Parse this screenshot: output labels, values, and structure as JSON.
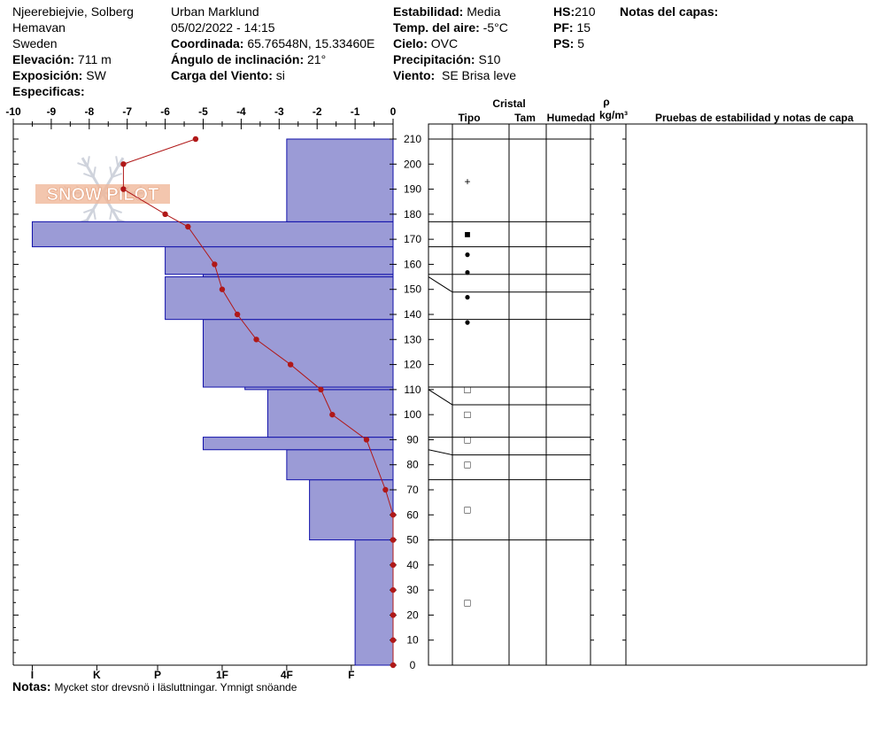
{
  "header": {
    "location": "Njeerebiejvie, Solberg",
    "region": "Hemavan",
    "country": "Sweden",
    "elevation_label": "Elevación:",
    "elevation_value": "711 m",
    "exposure_label": "Exposición:",
    "exposure_value": "SW",
    "specifics_label": "Especificas:",
    "observer": "Urban Marklund",
    "datetime": "05/02/2022 - 14:15",
    "coord_label": "Coordinada:",
    "coord_value": "65.76548N, 15.33460E",
    "slope_label": "Ángulo de inclinación:",
    "slope_value": "21°",
    "wind_load_label": "Carga del Viento:",
    "wind_load_value": "si",
    "stability_label": "Estabilidad:",
    "stability_value": "Media",
    "air_temp_label": "Temp. del aire:",
    "air_temp_value": "-5°C",
    "sky_label": "Cielo:",
    "sky_value": "OVC",
    "precip_label": "Precipitación:",
    "precip_value": "S10",
    "wind_label": "Viento:",
    "wind_value": "SE Brisa leve",
    "hs_label": "HS:",
    "hs_value": "210",
    "pf_label": "PF:",
    "pf_value": "15",
    "ps_label": "PS:",
    "ps_value": "5",
    "layer_notes_label": "Notas del capas:"
  },
  "notes": {
    "label": "Notas:",
    "text": "Mycket stor drevsnö i läsluttningar. Ymnigt snöande"
  },
  "watermark": {
    "text": "SNOW PILOT"
  },
  "table_headers": {
    "crystal": "Cristal",
    "type": "Tipo",
    "size": "Tam",
    "humidity": "Humedad",
    "rho": "ρ",
    "density_unit": "kg/m³",
    "tests": "Pruebas de estabilidad y notas de capa"
  },
  "colors": {
    "hardness_fill": "#9b9bd6",
    "hardness_stroke": "#1010aa",
    "temp_line": "#b01818"
  },
  "chart_data": {
    "type": "snow_profile",
    "temp_axis": {
      "min": -10,
      "max": 0,
      "ticks": [
        "-10",
        "-9",
        "-8",
        "-7",
        "-6",
        "-5",
        "-4",
        "-3",
        "-2",
        "-1",
        "0"
      ]
    },
    "height_axis": {
      "min": 0,
      "max": 210,
      "ticks": [
        "0",
        "10",
        "20",
        "30",
        "40",
        "50",
        "60",
        "70",
        "80",
        "90",
        "100",
        "110",
        "120",
        "130",
        "140",
        "150",
        "160",
        "170",
        "180",
        "190",
        "200",
        "210"
      ]
    },
    "hardness_axis": {
      "labels": [
        "I",
        "K",
        "P",
        "1F",
        "4F",
        "F"
      ],
      "positions": [
        9.5,
        7.8,
        6.2,
        4.5,
        2.8,
        1.1
      ]
    },
    "hardness_layers": [
      {
        "bottom": 0,
        "top": 50,
        "hardness": 1.0
      },
      {
        "bottom": 50,
        "top": 74,
        "hardness": 2.2
      },
      {
        "bottom": 74,
        "top": 86,
        "hardness": 2.8
      },
      {
        "bottom": 86,
        "top": 91,
        "hardness": 5.0
      },
      {
        "bottom": 91,
        "top": 110,
        "hardness": 3.3
      },
      {
        "bottom": 110,
        "top": 111,
        "hardness": 3.9
      },
      {
        "bottom": 111,
        "top": 138,
        "hardness": 5.0
      },
      {
        "bottom": 138,
        "top": 155,
        "hardness": 6.0
      },
      {
        "bottom": 155,
        "top": 156,
        "hardness": 5.0
      },
      {
        "bottom": 156,
        "top": 167,
        "hardness": 6.0
      },
      {
        "bottom": 167,
        "top": 177,
        "hardness": 9.5
      },
      {
        "bottom": 177,
        "top": 210,
        "hardness": 2.8
      }
    ],
    "temperature": [
      {
        "height": 0,
        "temp": 0.0
      },
      {
        "height": 10,
        "temp": 0.0
      },
      {
        "height": 20,
        "temp": 0.0
      },
      {
        "height": 30,
        "temp": 0.0
      },
      {
        "height": 40,
        "temp": 0.0
      },
      {
        "height": 50,
        "temp": 0.0
      },
      {
        "height": 60,
        "temp": 0.0
      },
      {
        "height": 70,
        "temp": -0.2
      },
      {
        "height": 90,
        "temp": -0.7
      },
      {
        "height": 100,
        "temp": -1.6
      },
      {
        "height": 110,
        "temp": -1.9
      },
      {
        "height": 120,
        "temp": -2.7
      },
      {
        "height": 130,
        "temp": -3.6
      },
      {
        "height": 140,
        "temp": -4.1
      },
      {
        "height": 150,
        "temp": -4.5
      },
      {
        "height": 160,
        "temp": -4.7
      },
      {
        "height": 175,
        "temp": -5.4
      },
      {
        "height": 180,
        "temp": -6.0
      },
      {
        "height": 190,
        "temp": -7.1
      },
      {
        "height": 200,
        "temp": -7.1
      },
      {
        "height": 210,
        "temp": -5.2
      }
    ],
    "layer_boundaries": [
      50,
      74,
      86,
      91,
      110,
      111,
      138,
      155,
      156,
      167,
      177,
      210
    ],
    "crystals": [
      {
        "height": 193,
        "symbol": "+"
      },
      {
        "height": 172,
        "symbol": "■"
      },
      {
        "height": 164,
        "symbol": "●"
      },
      {
        "height": 157,
        "symbol": "●"
      },
      {
        "height": 147,
        "symbol": "●"
      },
      {
        "height": 137,
        "symbol": "●"
      },
      {
        "height": 110,
        "symbol": "□"
      },
      {
        "height": 100,
        "symbol": "□"
      },
      {
        "height": 90,
        "symbol": "□"
      },
      {
        "height": 80,
        "symbol": "□"
      },
      {
        "height": 62,
        "symbol": "□"
      },
      {
        "height": 25,
        "symbol": "□"
      }
    ]
  }
}
